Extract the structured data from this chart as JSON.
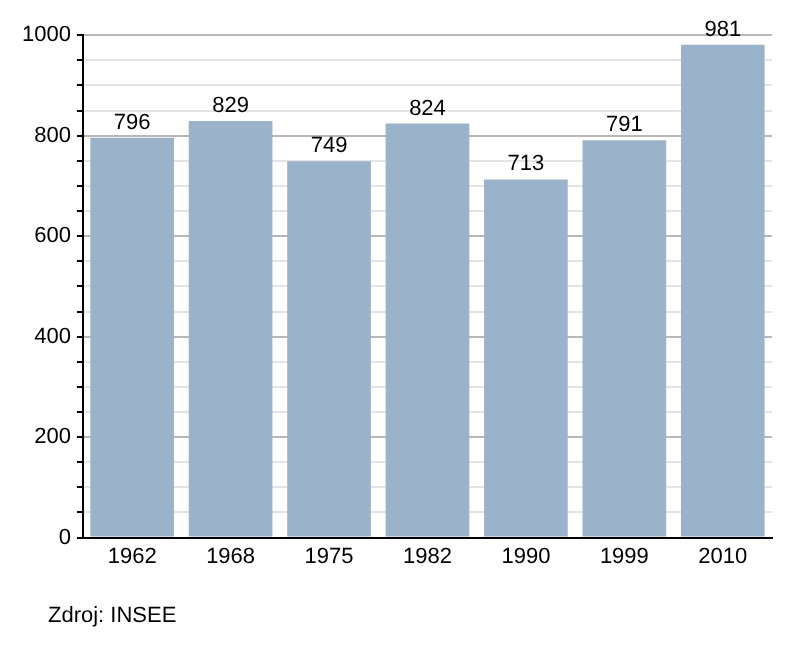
{
  "chart_data": {
    "type": "bar",
    "categories": [
      "1962",
      "1968",
      "1975",
      "1982",
      "1990",
      "1999",
      "2010"
    ],
    "values": [
      796,
      829,
      749,
      824,
      713,
      791,
      981
    ],
    "color": "#9bb2cb",
    "data_labels": true,
    "grid": "y",
    "ylim": [
      0,
      1000
    ],
    "yticks": [
      0,
      {
        "value": 50,
        "label": null
      },
      {
        "value": 100,
        "label": null
      },
      {
        "value": 150,
        "label": null
      },
      200,
      {
        "value": 250,
        "label": null
      },
      {
        "value": 300,
        "label": null
      },
      {
        "value": 350,
        "label": null
      },
      400,
      {
        "value": 450,
        "label": null
      },
      {
        "value": 500,
        "label": null
      },
      {
        "value": 550,
        "label": null
      },
      600,
      {
        "value": 650,
        "label": null
      },
      {
        "value": 700,
        "label": null
      },
      {
        "value": 750,
        "label": null
      },
      800,
      {
        "value": 850,
        "label": null
      },
      {
        "value": 900,
        "label": null
      },
      {
        "value": 950,
        "label": null
      },
      1000
    ],
    "annotations": [
      "Zdroj: INSEE"
    ]
  }
}
